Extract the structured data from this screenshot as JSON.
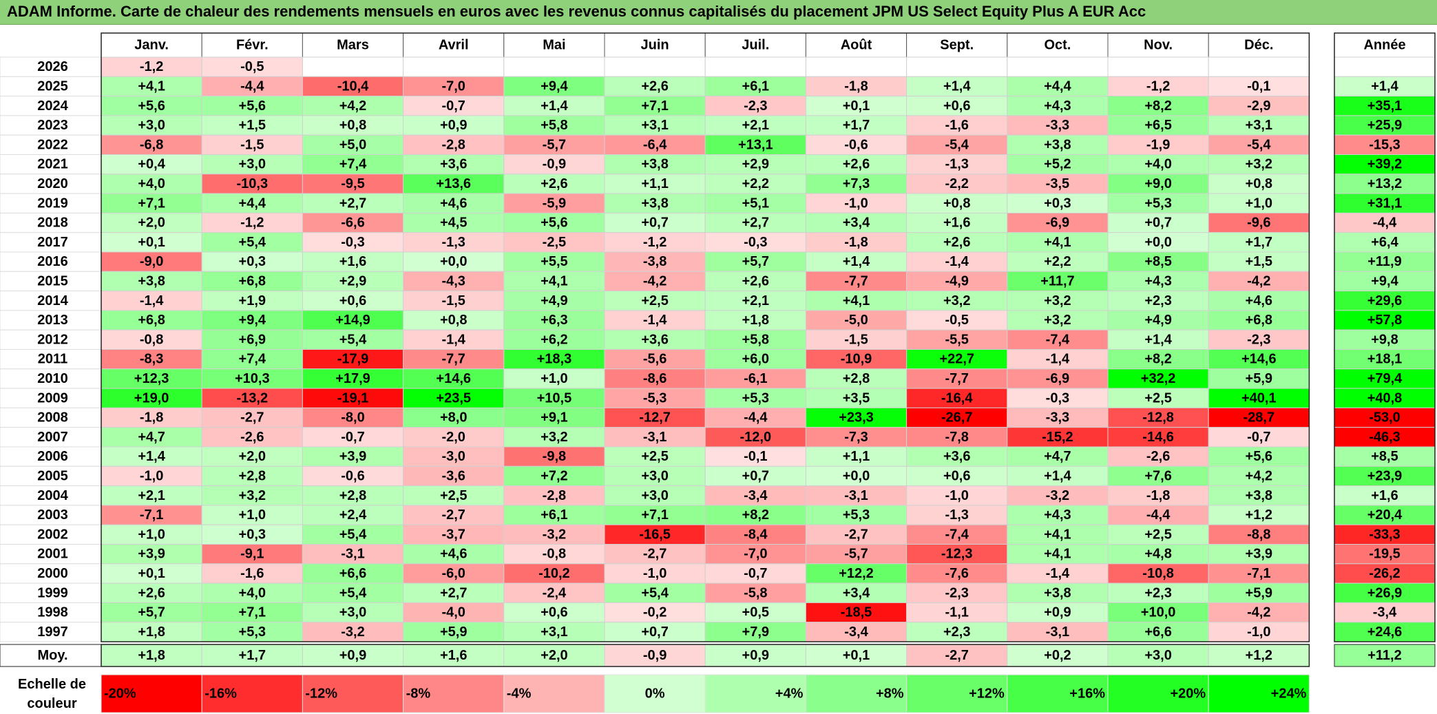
{
  "title": "ADAM Informe. Carte de chaleur des rendements mensuels en euros avec les revenus connus capitalisés du placement JPM US Select Equity Plus A EUR Acc",
  "chart_data": {
    "type": "heatmap",
    "months": [
      "Janv.",
      "Févr.",
      "Mars",
      "Avril",
      "Mai",
      "Juin",
      "Juil.",
      "Août",
      "Sept.",
      "Oct.",
      "Nov.",
      "Déc."
    ],
    "annual_header": "Année",
    "rows": [
      {
        "year": "2026",
        "values": [
          -1.2,
          -0.5,
          null,
          null,
          null,
          null,
          null,
          null,
          null,
          null,
          null,
          null
        ],
        "annual": null
      },
      {
        "year": "2025",
        "values": [
          4.1,
          -4.4,
          -10.4,
          -7.0,
          9.4,
          2.6,
          6.1,
          -1.8,
          1.4,
          4.4,
          -1.2,
          -0.1
        ],
        "annual": 1.4
      },
      {
        "year": "2024",
        "values": [
          5.6,
          5.6,
          4.2,
          -0.7,
          1.4,
          7.1,
          -2.3,
          0.1,
          0.6,
          4.3,
          8.2,
          -2.9
        ],
        "annual": 35.1
      },
      {
        "year": "2023",
        "values": [
          3.0,
          1.5,
          0.8,
          0.9,
          5.8,
          3.1,
          2.1,
          1.7,
          -1.6,
          -3.3,
          6.5,
          3.1
        ],
        "annual": 25.9
      },
      {
        "year": "2022",
        "values": [
          -6.8,
          -1.5,
          5.0,
          -2.8,
          -5.7,
          -6.4,
          13.1,
          -0.6,
          -5.4,
          3.8,
          -1.9,
          -5.4
        ],
        "annual": -15.3
      },
      {
        "year": "2021",
        "values": [
          0.4,
          3.0,
          7.4,
          3.6,
          -0.9,
          3.8,
          2.9,
          2.6,
          -1.3,
          5.2,
          4.0,
          3.2
        ],
        "annual": 39.2
      },
      {
        "year": "2020",
        "values": [
          4.0,
          -10.3,
          -9.5,
          13.6,
          2.6,
          1.1,
          2.2,
          7.3,
          -2.2,
          -3.5,
          9.0,
          0.8
        ],
        "annual": 13.2
      },
      {
        "year": "2019",
        "values": [
          7.1,
          4.4,
          2.7,
          4.6,
          -5.9,
          3.8,
          5.1,
          -1.0,
          0.8,
          0.3,
          5.3,
          1.0
        ],
        "annual": 31.1
      },
      {
        "year": "2018",
        "values": [
          2.0,
          -1.2,
          -6.6,
          4.5,
          5.6,
          0.7,
          2.7,
          3.4,
          1.6,
          -6.9,
          0.7,
          -9.6
        ],
        "annual": -4.4
      },
      {
        "year": "2017",
        "values": [
          0.1,
          5.4,
          -0.3,
          -1.3,
          -2.5,
          -1.2,
          -0.3,
          -1.8,
          2.6,
          4.1,
          -0.0,
          1.7
        ],
        "annual": 6.4
      },
      {
        "year": "2016",
        "values": [
          -9.0,
          0.3,
          1.6,
          -0.0,
          5.5,
          -3.8,
          5.7,
          1.4,
          -1.4,
          2.2,
          8.5,
          1.5
        ],
        "annual": 11.9
      },
      {
        "year": "2015",
        "values": [
          3.8,
          6.8,
          2.9,
          -4.3,
          4.1,
          -4.2,
          2.6,
          -7.7,
          -4.9,
          11.7,
          4.3,
          -4.2
        ],
        "annual": 9.4
      },
      {
        "year": "2014",
        "values": [
          -1.4,
          1.9,
          0.6,
          -1.5,
          4.9,
          2.5,
          2.1,
          4.1,
          3.2,
          3.2,
          2.3,
          4.6
        ],
        "annual": 29.6
      },
      {
        "year": "2013",
        "values": [
          6.8,
          9.4,
          14.9,
          0.8,
          6.3,
          -1.4,
          1.8,
          -5.0,
          -0.5,
          3.2,
          4.9,
          6.8
        ],
        "annual": 57.8
      },
      {
        "year": "2012",
        "values": [
          -0.8,
          6.9,
          5.4,
          -1.4,
          6.2,
          3.6,
          5.8,
          -1.5,
          -5.5,
          -7.4,
          1.4,
          -2.3
        ],
        "annual": 9.8
      },
      {
        "year": "2011",
        "values": [
          -8.3,
          7.4,
          -17.9,
          -7.7,
          18.3,
          -5.6,
          6.0,
          -10.9,
          22.7,
          -1.4,
          8.2,
          14.6
        ],
        "annual": 18.1
      },
      {
        "year": "2010",
        "values": [
          12.3,
          10.3,
          17.9,
          14.6,
          1.0,
          -8.6,
          -6.1,
          2.8,
          -7.7,
          -6.9,
          32.2,
          5.9
        ],
        "annual": 79.4
      },
      {
        "year": "2009",
        "values": [
          19.0,
          -13.2,
          -19.1,
          23.5,
          10.5,
          -5.3,
          5.3,
          3.5,
          -16.4,
          -0.3,
          2.5,
          40.1
        ],
        "annual": 40.8
      },
      {
        "year": "2008",
        "values": [
          -1.8,
          -2.7,
          -8.0,
          8.0,
          9.1,
          -12.7,
          -4.4,
          23.3,
          -26.7,
          -3.3,
          -12.8,
          -28.7
        ],
        "annual": -53.0
      },
      {
        "year": "2007",
        "values": [
          4.7,
          -2.6,
          -0.7,
          -2.0,
          3.2,
          -3.1,
          -12.0,
          -7.3,
          -7.8,
          -15.2,
          -14.6,
          -0.7
        ],
        "annual": -46.3
      },
      {
        "year": "2006",
        "values": [
          1.4,
          2.0,
          3.9,
          -3.0,
          -9.8,
          2.5,
          -0.1,
          1.1,
          3.6,
          4.7,
          -2.6,
          5.6
        ],
        "annual": 8.5
      },
      {
        "year": "2005",
        "values": [
          -1.0,
          2.8,
          -0.6,
          -3.6,
          7.2,
          3.0,
          0.7,
          -0.0,
          0.6,
          1.4,
          7.6,
          4.2
        ],
        "annual": 23.9
      },
      {
        "year": "2004",
        "values": [
          2.1,
          3.2,
          2.8,
          2.5,
          -2.8,
          3.0,
          -3.4,
          -3.1,
          -1.0,
          -3.2,
          -1.8,
          3.8
        ],
        "annual": 1.6
      },
      {
        "year": "2003",
        "values": [
          -7.1,
          1.0,
          2.4,
          -2.7,
          6.1,
          7.1,
          8.2,
          5.3,
          -1.3,
          4.3,
          -4.4,
          1.2
        ],
        "annual": 20.4
      },
      {
        "year": "2002",
        "values": [
          1.0,
          0.3,
          5.4,
          -3.7,
          -3.2,
          -16.5,
          -8.4,
          -2.7,
          -7.4,
          4.1,
          2.5,
          -8.8
        ],
        "annual": -33.3
      },
      {
        "year": "2001",
        "values": [
          3.9,
          -9.1,
          -3.1,
          4.6,
          -0.8,
          -2.7,
          -7.0,
          -5.7,
          -12.3,
          4.1,
          4.8,
          3.9
        ],
        "annual": -19.5
      },
      {
        "year": "2000",
        "values": [
          0.1,
          -1.6,
          6.6,
          -6.0,
          -10.2,
          -1.0,
          -0.7,
          12.2,
          -7.6,
          -1.4,
          -10.8,
          -7.1
        ],
        "annual": -26.2
      },
      {
        "year": "1999",
        "values": [
          2.6,
          4.0,
          5.4,
          2.7,
          -2.4,
          5.4,
          -5.8,
          3.4,
          -2.3,
          3.8,
          2.3,
          5.9
        ],
        "annual": 26.9
      },
      {
        "year": "1998",
        "values": [
          5.7,
          7.1,
          3.0,
          -4.0,
          0.6,
          -0.2,
          0.5,
          -18.5,
          -1.1,
          0.9,
          10.0,
          -4.2
        ],
        "annual": -3.4
      },
      {
        "year": "1997",
        "values": [
          1.8,
          5.3,
          -3.2,
          5.9,
          3.1,
          0.7,
          7.9,
          -3.4,
          2.3,
          -3.1,
          6.6,
          -1.0
        ],
        "annual": 24.6
      }
    ],
    "average": {
      "label": "Moy.",
      "values": [
        1.8,
        1.7,
        0.9,
        1.6,
        2.0,
        -0.9,
        0.9,
        0.1,
        -2.7,
        0.2,
        3.0,
        1.2
      ],
      "annual": 11.2
    },
    "scale": {
      "label_line1": "Echelle de",
      "label_line2": "couleur",
      "stops": [
        {
          "label": "-20%",
          "value": -20
        },
        {
          "label": "-16%",
          "value": -16
        },
        {
          "label": "-12%",
          "value": -12
        },
        {
          "label": "-8%",
          "value": -8
        },
        {
          "label": "-4%",
          "value": -4
        },
        {
          "label": "0%",
          "value": 0
        },
        {
          "label": "+4%",
          "value": 4
        },
        {
          "label": "+8%",
          "value": 8
        },
        {
          "label": "+12%",
          "value": 12
        },
        {
          "label": "+16%",
          "value": 16
        },
        {
          "label": "+20%",
          "value": 20
        },
        {
          "label": "+24%",
          "value": 24
        }
      ]
    },
    "colors": {
      "negative_max": "#ff0000",
      "positive_max": "#00ff00",
      "neutral": "#ffffff"
    }
  }
}
